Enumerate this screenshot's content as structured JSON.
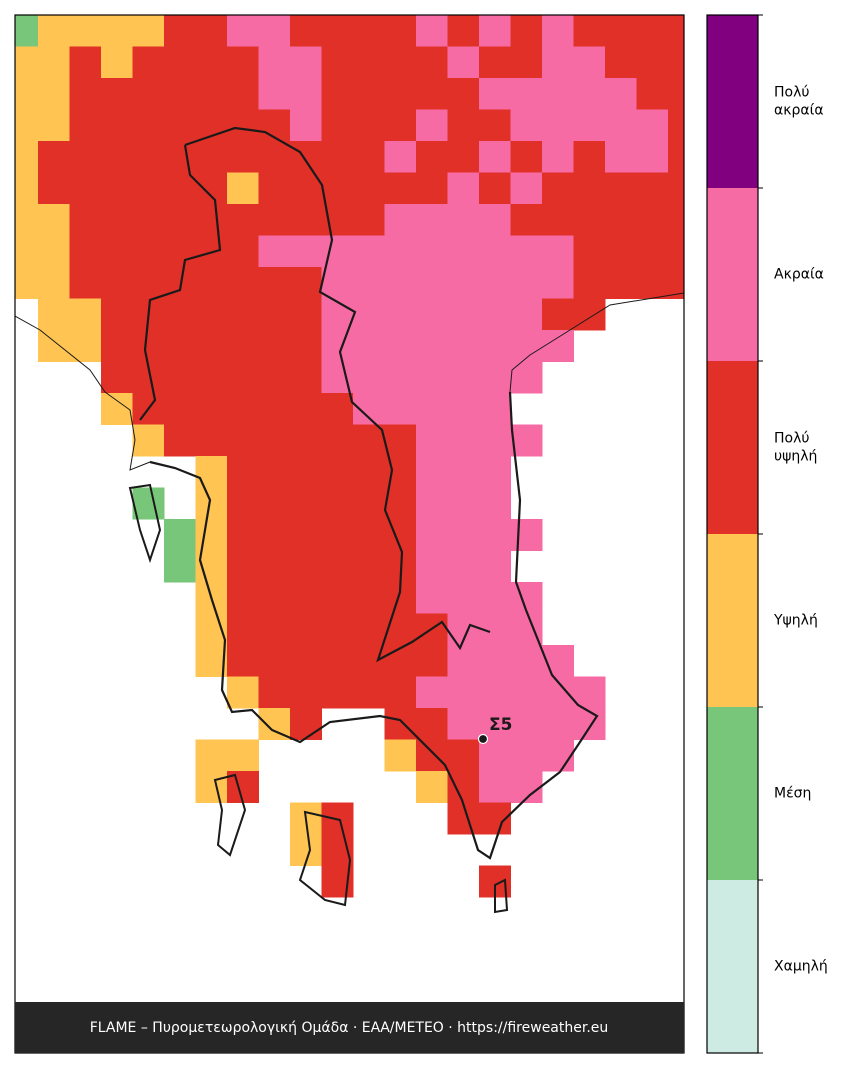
{
  "map": {
    "station": "Σ5",
    "footer": "FLAME – Πυρομετεωρολογική Ομάδα · ΕΑΑ/ΜΕΤΕΟ · https://fireweather.eu",
    "levels": [
      {
        "label": [
          "Χαμηλή"
        ],
        "color": "#cdebe3"
      },
      {
        "label": [
          "Μέση"
        ],
        "color": "#78c679"
      },
      {
        "label": [
          "Υψηλή"
        ],
        "color": "#ffc451"
      },
      {
        "label": [
          "Πολύ",
          "υψηλή"
        ],
        "color": "#e03028"
      },
      {
        "label": [
          "Ακραία"
        ],
        "color": "#f76ba5"
      },
      {
        "label": [
          "Πολύ",
          "ακραία"
        ],
        "color": "#800080"
      }
    ],
    "grid": [
      [
        1,
        2,
        2,
        2,
        2,
        3,
        3,
        4,
        4,
        3,
        3,
        3,
        3,
        4,
        3,
        4,
        3,
        4,
        3,
        3,
        3,
        3
      ],
      [
        2,
        2,
        3,
        2,
        3,
        3,
        3,
        3,
        4,
        4,
        3,
        3,
        3,
        3,
        4,
        3,
        3,
        4,
        4,
        3,
        3,
        3
      ],
      [
        2,
        2,
        3,
        3,
        3,
        3,
        3,
        3,
        4,
        4,
        3,
        3,
        3,
        3,
        3,
        4,
        4,
        4,
        4,
        4,
        3,
        3
      ],
      [
        2,
        2,
        3,
        3,
        3,
        3,
        3,
        3,
        3,
        4,
        3,
        3,
        3,
        4,
        3,
        3,
        4,
        4,
        4,
        4,
        4,
        3
      ],
      [
        2,
        3,
        3,
        3,
        3,
        3,
        3,
        3,
        3,
        3,
        3,
        3,
        4,
        3,
        3,
        4,
        3,
        4,
        3,
        4,
        4,
        3
      ],
      [
        2,
        3,
        3,
        3,
        3,
        3,
        3,
        2,
        3,
        3,
        3,
        3,
        3,
        3,
        4,
        3,
        4,
        3,
        3,
        3,
        3,
        3
      ],
      [
        2,
        2,
        3,
        3,
        3,
        3,
        3,
        3,
        3,
        3,
        3,
        3,
        4,
        4,
        4,
        4,
        3,
        3,
        3,
        3,
        3,
        3
      ],
      [
        2,
        2,
        3,
        3,
        3,
        3,
        3,
        3,
        4,
        4,
        4,
        4,
        4,
        4,
        4,
        4,
        4,
        4,
        3,
        3,
        3,
        3
      ],
      [
        2,
        2,
        3,
        3,
        3,
        3,
        3,
        3,
        3,
        3,
        4,
        4,
        4,
        4,
        4,
        4,
        4,
        4,
        3,
        3,
        3,
        3
      ],
      [
        null,
        2,
        2,
        3,
        3,
        3,
        3,
        3,
        3,
        3,
        4,
        4,
        4,
        4,
        4,
        4,
        4,
        3,
        3,
        null,
        null,
        null
      ],
      [
        null,
        2,
        2,
        3,
        3,
        3,
        3,
        3,
        3,
        3,
        4,
        4,
        4,
        4,
        4,
        4,
        4,
        4,
        null,
        null,
        null,
        null
      ],
      [
        null,
        null,
        null,
        3,
        3,
        3,
        3,
        3,
        3,
        3,
        4,
        4,
        4,
        4,
        4,
        4,
        4,
        null,
        null,
        null,
        null,
        null
      ],
      [
        null,
        null,
        null,
        2,
        3,
        3,
        3,
        3,
        3,
        3,
        3,
        4,
        4,
        4,
        4,
        4,
        null,
        null,
        null,
        null,
        null,
        null
      ],
      [
        null,
        null,
        null,
        null,
        2,
        3,
        3,
        3,
        3,
        3,
        3,
        3,
        3,
        4,
        4,
        4,
        4,
        null,
        null,
        null,
        null,
        null
      ],
      [
        null,
        null,
        null,
        null,
        null,
        null,
        2,
        3,
        3,
        3,
        3,
        3,
        3,
        4,
        4,
        4,
        null,
        null,
        null,
        null,
        null,
        null
      ],
      [
        null,
        null,
        null,
        null,
        1,
        null,
        2,
        3,
        3,
        3,
        3,
        3,
        3,
        4,
        4,
        4,
        null,
        null,
        null,
        null,
        null,
        null
      ],
      [
        null,
        null,
        null,
        null,
        null,
        1,
        2,
        3,
        3,
        3,
        3,
        3,
        3,
        4,
        4,
        4,
        4,
        null,
        null,
        null,
        null,
        null
      ],
      [
        null,
        null,
        null,
        null,
        null,
        1,
        2,
        3,
        3,
        3,
        3,
        3,
        3,
        4,
        4,
        4,
        null,
        null,
        null,
        null,
        null,
        null
      ],
      [
        null,
        null,
        null,
        null,
        null,
        null,
        2,
        3,
        3,
        3,
        3,
        3,
        3,
        4,
        4,
        4,
        4,
        null,
        null,
        null,
        null,
        null
      ],
      [
        null,
        null,
        null,
        null,
        null,
        null,
        2,
        3,
        3,
        3,
        3,
        3,
        3,
        3,
        4,
        4,
        4,
        null,
        null,
        null,
        null,
        null
      ],
      [
        null,
        null,
        null,
        null,
        null,
        null,
        2,
        3,
        3,
        3,
        3,
        3,
        3,
        3,
        4,
        4,
        4,
        4,
        null,
        null,
        null,
        null
      ],
      [
        null,
        null,
        null,
        null,
        null,
        null,
        null,
        2,
        3,
        3,
        3,
        3,
        3,
        4,
        4,
        4,
        4,
        4,
        4,
        null,
        null,
        null
      ],
      [
        null,
        null,
        null,
        null,
        null,
        null,
        null,
        null,
        2,
        3,
        null,
        null,
        3,
        3,
        4,
        4,
        4,
        4,
        4,
        null,
        null,
        null
      ],
      [
        null,
        null,
        null,
        null,
        null,
        null,
        2,
        2,
        null,
        null,
        null,
        null,
        2,
        3,
        3,
        4,
        4,
        4,
        null,
        null,
        null,
        null
      ],
      [
        null,
        null,
        null,
        null,
        null,
        null,
        2,
        3,
        null,
        null,
        null,
        null,
        null,
        2,
        3,
        4,
        4,
        null,
        null,
        null,
        null,
        null
      ],
      [
        null,
        null,
        null,
        null,
        null,
        null,
        null,
        null,
        null,
        2,
        3,
        null,
        null,
        null,
        3,
        3,
        null,
        null,
        null,
        null,
        null,
        null
      ],
      [
        null,
        null,
        null,
        null,
        null,
        null,
        null,
        null,
        null,
        2,
        3,
        null,
        null,
        null,
        null,
        null,
        null,
        null,
        null,
        null,
        null,
        null
      ],
      [
        null,
        null,
        null,
        null,
        null,
        null,
        null,
        null,
        null,
        null,
        3,
        null,
        null,
        null,
        null,
        3,
        null,
        null,
        null,
        null,
        null,
        null
      ]
    ]
  }
}
